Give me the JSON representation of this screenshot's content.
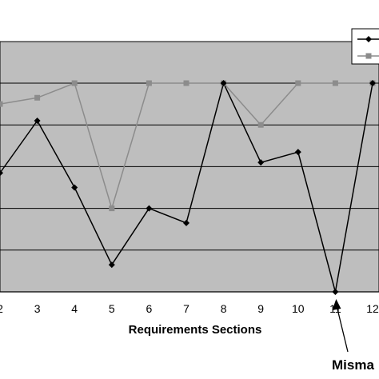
{
  "chart_data": {
    "type": "line",
    "title": "",
    "xlabel": "Requirements Sections",
    "ylabel": "",
    "x": [
      2,
      3,
      4,
      5,
      6,
      7,
      8,
      9,
      10,
      11,
      12
    ],
    "x_tick_labels": [
      "2",
      "3",
      "4",
      "5",
      "6",
      "7",
      "8",
      "9",
      "10",
      "11",
      "12"
    ],
    "ylim": [
      0,
      10
    ],
    "grid": true,
    "legend_placement": "top-right",
    "series": [
      {
        "marker": "diamond",
        "color": "#000000",
        "values": [
          5.7,
          8.2,
          5.0,
          1.3,
          4.0,
          3.3,
          10.0,
          6.2,
          6.7,
          0.0,
          10.0
        ]
      },
      {
        "marker": "square",
        "color": "#8c8c8c",
        "values": [
          9.0,
          9.3,
          10.0,
          4.0,
          10.0,
          10.0,
          10.0,
          8.0,
          10.0,
          10.0,
          10.0
        ]
      }
    ],
    "annotation": {
      "text": "Misma",
      "x": 11
    }
  },
  "colors": {
    "plot_background": "#bebebe",
    "gridline": "#000000",
    "page": "#ffffff"
  }
}
